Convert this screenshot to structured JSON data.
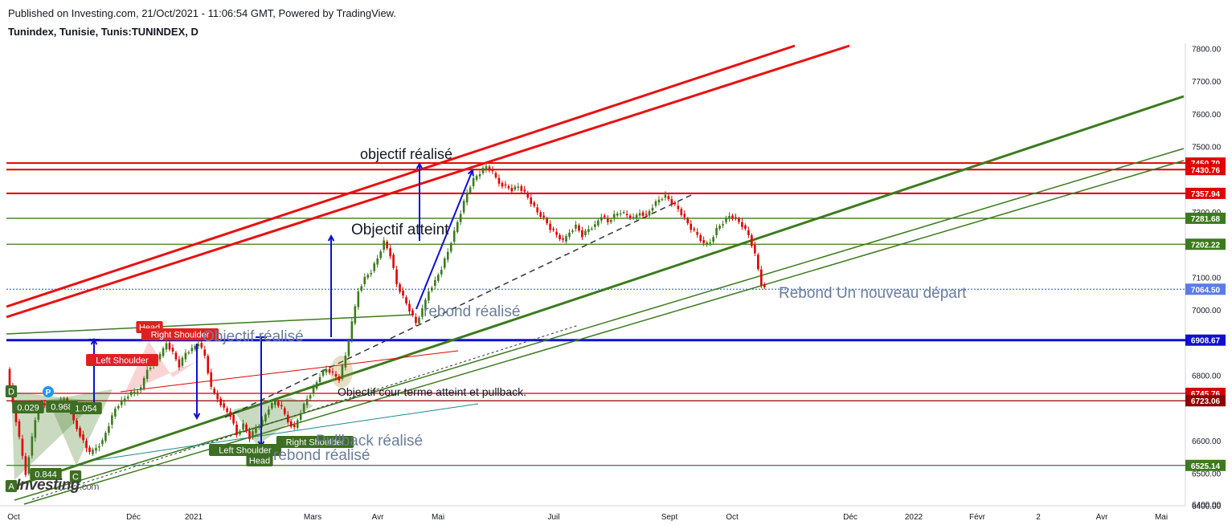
{
  "header": {
    "published": "Published on Investing.com, 21/Oct/2021 - 11:06:54 GMT, Powered by TradingView.",
    "symbol": "Tunindex, Tunisie, Tunis:TUNINDEX, D"
  },
  "watermark": {
    "brand": "Investing",
    "suffix": ".com"
  },
  "chart_data": {
    "type": "candlestick",
    "title": "Tunindex, Tunisie, Tunis:TUNINDEX, D",
    "x_ticks": [
      "Oct",
      "Déc",
      "2021",
      "Mars",
      "Avr",
      "Mai",
      "Juil",
      "Sept",
      "Oct",
      "Déc",
      "2022",
      "Févr",
      "2",
      "Avr",
      "Mai"
    ],
    "y_ticks": [
      "7800.00",
      "7700.00",
      "7600.00",
      "7500.00",
      "7300.00",
      "7100.00",
      "7000.00",
      "6800.00",
      "6600.00",
      "6500.00",
      "6400.00"
    ],
    "ylim": [
      6400,
      7820
    ],
    "last_price": "7064.50",
    "price_levels": [
      {
        "value": 7450.7,
        "label": "7450.70",
        "color": "#e00000"
      },
      {
        "value": 7430.76,
        "label": "7430.76",
        "color": "#e00000"
      },
      {
        "value": 7357.94,
        "label": "7357.94",
        "color": "#e00000"
      },
      {
        "value": 7281.68,
        "label": "7281.68",
        "color": "#3d7a1e"
      },
      {
        "value": 7202.22,
        "label": "7202.22",
        "color": "#3d7a1e"
      },
      {
        "value": 7064.5,
        "label": "7064.50",
        "color": "#5b7ce6"
      },
      {
        "value": 6908.67,
        "label": "6908.67",
        "color": "#1010d0"
      },
      {
        "value": 6745.76,
        "label": "6745.76",
        "color": "#d00000"
      },
      {
        "value": 6723.06,
        "label": "6723.06",
        "color": "#8b0000"
      },
      {
        "value": 6525.14,
        "label": "6525.14",
        "color": "#3d7a1e"
      }
    ],
    "price_path": [
      [
        0,
        6820
      ],
      [
        6,
        6500
      ],
      [
        10,
        6720
      ],
      [
        14,
        6700
      ],
      [
        18,
        6730
      ],
      [
        22,
        6640
      ],
      [
        26,
        6560
      ],
      [
        30,
        6600
      ],
      [
        34,
        6700
      ],
      [
        38,
        6740
      ],
      [
        42,
        6760
      ],
      [
        44,
        6820
      ],
      [
        48,
        6860
      ],
      [
        50,
        6900
      ],
      [
        52,
        6870
      ],
      [
        54,
        6830
      ],
      [
        56,
        6870
      ],
      [
        58,
        6880
      ],
      [
        60,
        6900
      ],
      [
        62,
        6860
      ],
      [
        64,
        6760
      ],
      [
        66,
        6730
      ],
      [
        68,
        6700
      ],
      [
        70,
        6680
      ],
      [
        72,
        6620
      ],
      [
        74,
        6650
      ],
      [
        76,
        6610
      ],
      [
        78,
        6640
      ],
      [
        80,
        6660
      ],
      [
        82,
        6700
      ],
      [
        84,
        6720
      ],
      [
        86,
        6700
      ],
      [
        88,
        6660
      ],
      [
        90,
        6640
      ],
      [
        92,
        6690
      ],
      [
        94,
        6730
      ],
      [
        96,
        6760
      ],
      [
        98,
        6800
      ],
      [
        100,
        6820
      ],
      [
        104,
        6790
      ],
      [
        106,
        6860
      ],
      [
        108,
        6960
      ],
      [
        110,
        7060
      ],
      [
        112,
        7100
      ],
      [
        114,
        7120
      ],
      [
        116,
        7160
      ],
      [
        118,
        7210
      ],
      [
        120,
        7170
      ],
      [
        122,
        7080
      ],
      [
        124,
        7040
      ],
      [
        126,
        7000
      ],
      [
        128,
        6960
      ],
      [
        130,
        7000
      ],
      [
        132,
        7060
      ],
      [
        134,
        7090
      ],
      [
        136,
        7130
      ],
      [
        138,
        7180
      ],
      [
        140,
        7240
      ],
      [
        142,
        7300
      ],
      [
        144,
        7360
      ],
      [
        146,
        7400
      ],
      [
        148,
        7420
      ],
      [
        150,
        7440
      ],
      [
        152,
        7420
      ],
      [
        154,
        7390
      ],
      [
        156,
        7380
      ],
      [
        158,
        7370
      ],
      [
        160,
        7380
      ],
      [
        162,
        7360
      ],
      [
        164,
        7330
      ],
      [
        166,
        7300
      ],
      [
        168,
        7280
      ],
      [
        170,
        7250
      ],
      [
        172,
        7230
      ],
      [
        174,
        7210
      ],
      [
        176,
        7240
      ],
      [
        178,
        7260
      ],
      [
        180,
        7230
      ],
      [
        182,
        7250
      ],
      [
        184,
        7260
      ],
      [
        186,
        7290
      ],
      [
        188,
        7270
      ],
      [
        190,
        7290
      ],
      [
        192,
        7300
      ],
      [
        194,
        7290
      ],
      [
        196,
        7280
      ],
      [
        198,
        7300
      ],
      [
        200,
        7290
      ],
      [
        202,
        7320
      ],
      [
        204,
        7340
      ],
      [
        206,
        7350
      ],
      [
        208,
        7330
      ],
      [
        210,
        7310
      ],
      [
        212,
        7280
      ],
      [
        214,
        7250
      ],
      [
        216,
        7230
      ],
      [
        218,
        7200
      ],
      [
        220,
        7210
      ],
      [
        222,
        7250
      ],
      [
        224,
        7270
      ],
      [
        226,
        7290
      ],
      [
        228,
        7280
      ],
      [
        230,
        7260
      ],
      [
        232,
        7230
      ],
      [
        234,
        7170
      ],
      [
        236,
        7080
      ],
      [
        237,
        7064.5
      ]
    ],
    "annotations": [
      {
        "text": "objectif réalisé",
        "color": "#131722"
      },
      {
        "text": "Objectif atteint",
        "color": "#131722"
      },
      {
        "text": "rebond réalisé",
        "color": "#6a7d99"
      },
      {
        "text": "Objectif réalisé",
        "color": "#6a7d99"
      },
      {
        "text": "Rebond   Un nouveau départ",
        "color": "#6a7d99"
      },
      {
        "text": "Objectif cour terme atteint et pullback.",
        "color": "#131722"
      },
      {
        "text": "Pullback réalisé",
        "color": "#6a7d99"
      },
      {
        "text": "rebond réalisé",
        "color": "#6a7d99"
      }
    ],
    "pattern_labels": [
      {
        "text": "Head",
        "color": "#e02020"
      },
      {
        "text": "Right Shoulder",
        "color": "#e02020"
      },
      {
        "text": "Left Shoulder",
        "color": "#e02020"
      },
      {
        "text": "Right Shoulder",
        "color": "#3d6e23"
      },
      {
        "text": "Left Shoulder",
        "color": "#3d6e23"
      },
      {
        "text": "Head",
        "color": "#3d6e23"
      },
      {
        "text": "0.844",
        "color": "#3d6e23"
      },
      {
        "text": "0.968",
        "color": "#3d6e23"
      },
      {
        "text": "1.054",
        "color": "#3d6e23"
      },
      {
        "text": "0.029",
        "color": "#3d6e23"
      },
      {
        "text": "C",
        "color": "#3d6e23"
      },
      {
        "text": "D",
        "color": "#3d6e23"
      },
      {
        "text": "A",
        "color": "#3d6e23"
      },
      {
        "text": "P",
        "color": "#2196f3"
      }
    ],
    "colors": {
      "red_channel": "#e81010",
      "green_channel": "#3d7a1e",
      "blue_level": "#1010d0",
      "bull": "#3d7a1e",
      "bear": "#e00000"
    }
  }
}
